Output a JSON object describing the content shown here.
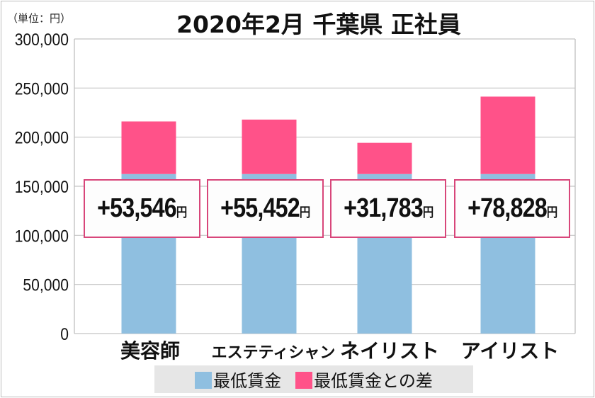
{
  "unit_label": "（単位：円）",
  "chart_data": {
    "type": "bar",
    "stacked": true,
    "title": "2020年2月 千葉県 正社員",
    "categories": [
      "美容師",
      "エステティシャン",
      "ネイリスト",
      "アイリスト"
    ],
    "series": [
      {
        "name": "最低賃金",
        "values": [
          162448,
          162448,
          162448,
          162448
        ],
        "color": "#8fbfe0"
      },
      {
        "name": "最低賃金との差",
        "values": [
          53546,
          55452,
          31783,
          78828
        ],
        "color": "#ff5289"
      }
    ],
    "data_labels": [
      "+53,546",
      "+55,452",
      "+31,783",
      "+78,828"
    ],
    "data_label_unit": "円",
    "ylim": [
      0,
      300000
    ],
    "yticks": [
      "0",
      "50,000",
      "100,000",
      "150,000",
      "200,000",
      "250,000",
      "300,000"
    ],
    "grid": true,
    "legend": "bottom"
  }
}
